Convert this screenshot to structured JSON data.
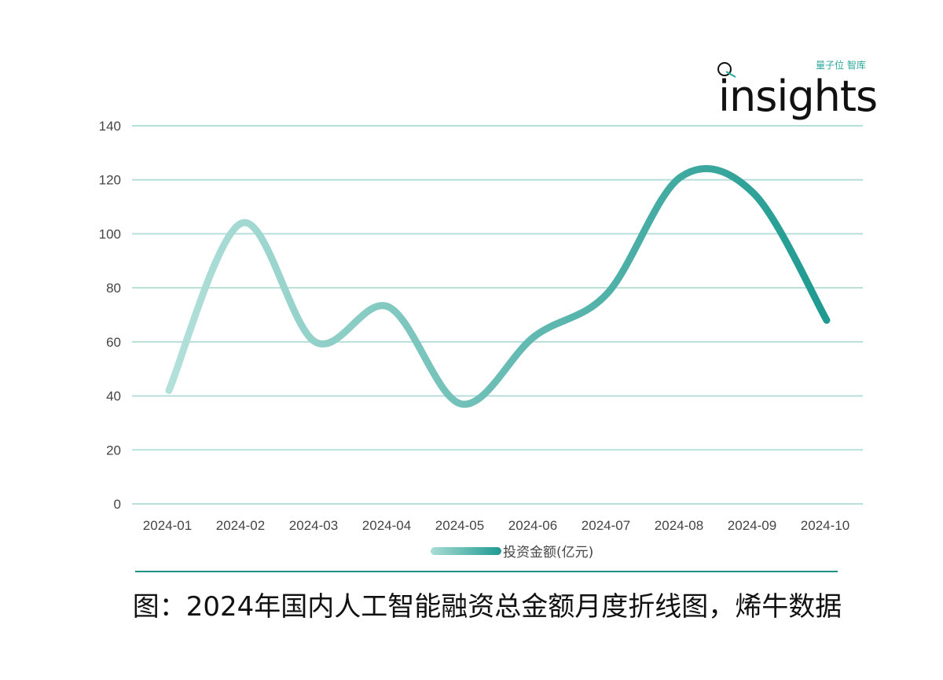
{
  "chart_data": {
    "type": "line",
    "categories": [
      "2024-01",
      "2024-02",
      "2024-03",
      "2024-04",
      "2024-05",
      "2024-06",
      "2024-07",
      "2024-08",
      "2024-09",
      "2024-10"
    ],
    "series": [
      {
        "name": "投资金额(亿元)",
        "values": [
          42,
          104,
          60,
          73,
          37,
          62,
          78,
          121,
          115,
          68
        ]
      }
    ],
    "ylim": [
      0,
      140
    ],
    "yticks": [
      "0",
      "20",
      "40",
      "60",
      "80",
      "100",
      "120",
      "140"
    ],
    "grid": true,
    "smooth": true,
    "legend_position": "bottom",
    "colors": {
      "line_start": "#b3e0da",
      "line_end": "#1f9a90",
      "grid": "#b7dfda"
    }
  },
  "logo": {
    "word": "insights",
    "subtitle": "量子位 智库"
  },
  "legend_label": "投资金额(亿元)",
  "caption": "图：2024年国内人工智能融资总金额月度折线图，烯牛数据"
}
